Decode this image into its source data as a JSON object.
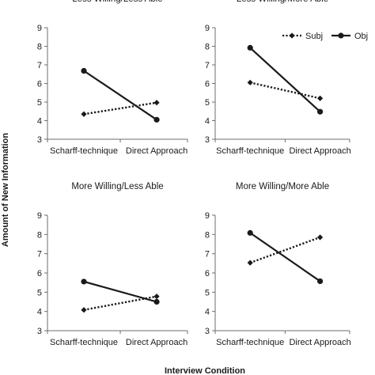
{
  "figure": {
    "ylabel": "Amount of New Information",
    "xlabel": "Interview Condition"
  },
  "chart_data": [
    {
      "type": "line",
      "title": "Less Willing/Less Able",
      "categories": [
        "Scharff-technique",
        "Direct Approach"
      ],
      "ylim": [
        3,
        9
      ],
      "yticks": [
        3,
        4,
        5,
        6,
        7,
        8,
        9
      ],
      "series": [
        {
          "name": "Subj",
          "values": [
            4.35,
            4.97
          ]
        },
        {
          "name": "Obj",
          "values": [
            6.68,
            4.05
          ]
        }
      ]
    },
    {
      "type": "line",
      "title": "Less Willing/More Able",
      "categories": [
        "Scharff-technique",
        "Direct Approach"
      ],
      "ylim": [
        3,
        9
      ],
      "yticks": [
        3,
        4,
        5,
        6,
        7,
        8,
        9
      ],
      "legend": {
        "position": "top-right",
        "entries": [
          "Subj",
          "Obj"
        ]
      },
      "series": [
        {
          "name": "Subj",
          "values": [
            6.05,
            5.2
          ]
        },
        {
          "name": "Obj",
          "values": [
            7.92,
            4.48
          ]
        }
      ]
    },
    {
      "type": "line",
      "title": "More Willing/Less Able",
      "categories": [
        "Scharff-technique",
        "Direct Approach"
      ],
      "ylim": [
        3,
        9
      ],
      "yticks": [
        3,
        4,
        5,
        6,
        7,
        8,
        9
      ],
      "series": [
        {
          "name": "Subj",
          "values": [
            4.08,
            4.78
          ]
        },
        {
          "name": "Obj",
          "values": [
            5.55,
            4.5
          ]
        }
      ]
    },
    {
      "type": "line",
      "title": "More Willing/More Able",
      "categories": [
        "Scharff-technique",
        "Direct Approach"
      ],
      "ylim": [
        3,
        9
      ],
      "yticks": [
        3,
        4,
        5,
        6,
        7,
        8,
        9
      ],
      "series": [
        {
          "name": "Subj",
          "values": [
            6.53,
            7.85
          ]
        },
        {
          "name": "Obj",
          "values": [
            8.08,
            5.57
          ]
        }
      ]
    }
  ],
  "style": {
    "ink": "#1a1a1a",
    "axis": "#6e6e6e",
    "subj_marker": "diamond",
    "obj_marker": "circle"
  }
}
